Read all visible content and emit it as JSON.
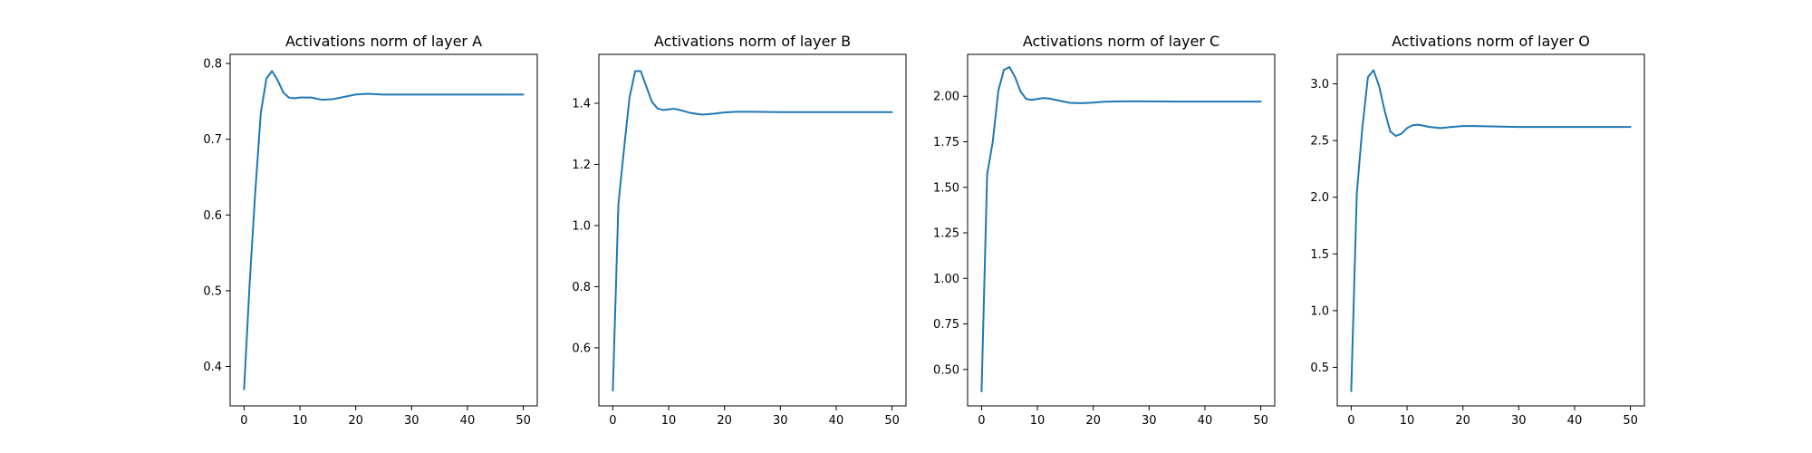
{
  "chart_data": [
    {
      "type": "line",
      "title": "Activations norm of layer A",
      "xlabel": "",
      "ylabel": "",
      "xlim": [
        -2.5,
        52.5
      ],
      "ylim": [
        0.348,
        0.812
      ],
      "xticks": [
        0,
        10,
        20,
        30,
        40,
        50
      ],
      "yticks": [
        0.4,
        0.5,
        0.6,
        0.7,
        0.8
      ],
      "ytick_labels": [
        "0.4",
        "0.5",
        "0.6",
        "0.7",
        "0.8"
      ],
      "grid": false,
      "series": [
        {
          "color": "#1f77b4",
          "x": [
            0,
            1,
            2,
            3,
            4,
            5,
            6,
            7,
            8,
            9,
            10,
            12,
            14,
            16,
            18,
            20,
            22,
            25,
            30,
            35,
            40,
            45,
            50
          ],
          "y": [
            0.37,
            0.51,
            0.63,
            0.735,
            0.78,
            0.79,
            0.778,
            0.762,
            0.755,
            0.754,
            0.755,
            0.755,
            0.752,
            0.753,
            0.756,
            0.759,
            0.76,
            0.759,
            0.759,
            0.759,
            0.759,
            0.759,
            0.759
          ]
        }
      ]
    },
    {
      "type": "line",
      "title": "Activations norm of layer B",
      "xlabel": "",
      "ylabel": "",
      "xlim": [
        -2.5,
        52.5
      ],
      "ylim": [
        0.41,
        1.56
      ],
      "xticks": [
        0,
        10,
        20,
        30,
        40,
        50
      ],
      "yticks": [
        0.6,
        0.8,
        1.0,
        1.2,
        1.4
      ],
      "ytick_labels": [
        "0.6",
        "0.8",
        "1.0",
        "1.2",
        "1.4"
      ],
      "grid": false,
      "series": [
        {
          "color": "#1f77b4",
          "x": [
            0,
            1,
            2,
            3,
            4,
            5,
            6,
            7,
            8,
            9,
            10,
            11,
            12,
            14,
            16,
            18,
            20,
            22,
            25,
            30,
            35,
            40,
            45,
            50
          ],
          "y": [
            0.46,
            1.07,
            1.25,
            1.42,
            1.505,
            1.505,
            1.455,
            1.405,
            1.383,
            1.378,
            1.38,
            1.382,
            1.378,
            1.368,
            1.363,
            1.366,
            1.37,
            1.372,
            1.372,
            1.371,
            1.371,
            1.371,
            1.371,
            1.371
          ]
        }
      ]
    },
    {
      "type": "line",
      "title": "Activations norm of layer C",
      "xlabel": "",
      "ylabel": "",
      "xlim": [
        -2.5,
        52.5
      ],
      "ylim": [
        0.3,
        2.23
      ],
      "xticks": [
        0,
        10,
        20,
        30,
        40,
        50
      ],
      "yticks": [
        0.5,
        0.75,
        1.0,
        1.25,
        1.5,
        1.75,
        2.0
      ],
      "ytick_labels": [
        "0.50",
        "0.75",
        "1.00",
        "1.25",
        "1.50",
        "1.75",
        "2.00"
      ],
      "grid": false,
      "series": [
        {
          "color": "#1f77b4",
          "x": [
            0,
            1,
            2,
            3,
            4,
            5,
            6,
            7,
            8,
            9,
            10,
            11,
            12,
            14,
            16,
            18,
            20,
            22,
            25,
            30,
            35,
            40,
            45,
            50
          ],
          "y": [
            0.38,
            1.57,
            1.75,
            2.03,
            2.145,
            2.16,
            2.105,
            2.025,
            1.985,
            1.98,
            1.985,
            1.99,
            1.988,
            1.975,
            1.963,
            1.962,
            1.965,
            1.97,
            1.972,
            1.972,
            1.971,
            1.971,
            1.971,
            1.971
          ]
        }
      ]
    },
    {
      "type": "line",
      "title": "Activations norm of layer O",
      "xlabel": "",
      "ylabel": "",
      "xlim": [
        -2.5,
        52.5
      ],
      "ylim": [
        0.16,
        3.26
      ],
      "xticks": [
        0,
        10,
        20,
        30,
        40,
        50
      ],
      "yticks": [
        0.5,
        1.0,
        1.5,
        2.0,
        2.5,
        3.0
      ],
      "ytick_labels": [
        "0.5",
        "1.0",
        "1.5",
        "2.0",
        "2.5",
        "3.0"
      ],
      "grid": false,
      "series": [
        {
          "color": "#1f77b4",
          "x": [
            0,
            1,
            2,
            3,
            4,
            5,
            6,
            7,
            8,
            9,
            10,
            11,
            12,
            14,
            16,
            18,
            20,
            22,
            25,
            30,
            35,
            40,
            45,
            50
          ],
          "y": [
            0.29,
            2.03,
            2.62,
            3.06,
            3.12,
            2.98,
            2.76,
            2.58,
            2.54,
            2.56,
            2.61,
            2.635,
            2.64,
            2.62,
            2.61,
            2.62,
            2.628,
            2.628,
            2.625,
            2.62,
            2.62,
            2.62,
            2.62,
            2.62
          ]
        }
      ]
    }
  ]
}
